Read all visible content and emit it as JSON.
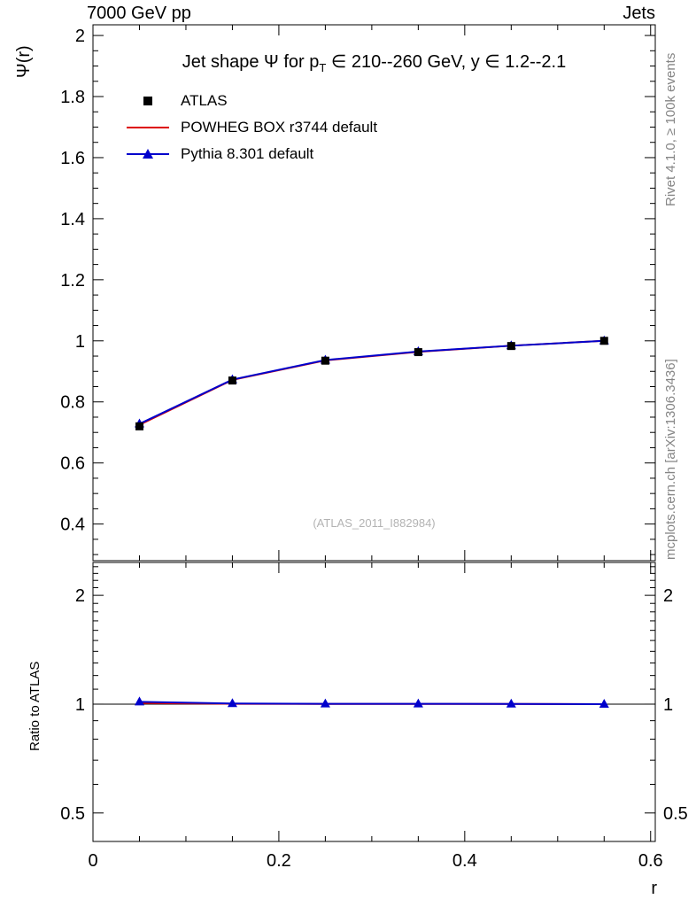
{
  "header": {
    "left": "7000 GeV pp",
    "right": "Jets"
  },
  "title": {
    "part1": "Jet shape Ψ for p",
    "sub": "T",
    "part2": " ∈ 210--260 GeV, y ∈ 1.2--2.1"
  },
  "legend": [
    {
      "label": "ATLAS",
      "marker": "filled-square",
      "color": "#000000"
    },
    {
      "label": "POWHEG BOX r3744 default",
      "marker": "line",
      "color": "#dd0000"
    },
    {
      "label": "Pythia 8.301 default",
      "marker": "filled-triangle-line",
      "color": "#0000cc"
    }
  ],
  "watermark": "(ATLAS_2011_I882984)",
  "side_notes": {
    "top": "Rivet 4.1.0, ≥ 100k events",
    "bottom": "mcplots.cern.ch [arXiv:1306.3436]"
  },
  "axis_labels": {
    "y_main": "Ψ(r)",
    "y_ratio": "Ratio to ATLAS",
    "x": "r"
  },
  "chart_data": {
    "type": "line",
    "title": "Jet shape Ψ for pT ∈ 210--260 GeV, y ∈ 1.2--2.1",
    "xlabel": "r",
    "ylabel_main": "Ψ(r)",
    "ylabel_ratio": "Ratio to ATLAS",
    "x": [
      0.05,
      0.15,
      0.25,
      0.35,
      0.45,
      0.55
    ],
    "series": [
      {
        "name": "ATLAS",
        "color": "#000000",
        "marker": "square",
        "values": [
          0.72,
          0.87,
          0.935,
          0.963,
          0.983,
          1.0
        ]
      },
      {
        "name": "POWHEG BOX r3744 default",
        "color": "#dd0000",
        "marker": "none",
        "values": [
          0.725,
          0.872,
          0.936,
          0.964,
          0.984,
          1.0
        ]
      },
      {
        "name": "Pythia 8.301 default",
        "color": "#0000cc",
        "marker": "triangle",
        "values": [
          0.728,
          0.873,
          0.937,
          0.965,
          0.984,
          1.0
        ]
      }
    ],
    "ratio_series": [
      {
        "name": "POWHEG BOX r3744 default",
        "color": "#dd0000",
        "marker": "none",
        "values": [
          1.007,
          1.002,
          1.001,
          1.001,
          1.001,
          1.0
        ]
      },
      {
        "name": "Pythia 8.301 default",
        "color": "#0000cc",
        "marker": "triangle",
        "values": [
          1.015,
          1.004,
          1.002,
          1.002,
          1.001,
          1.0
        ]
      }
    ],
    "reference_line": 1,
    "xlim": [
      0,
      0.605
    ],
    "ylim_main": [
      0.28,
      2.035
    ],
    "ylim_ratio": [
      0.417,
      2.466
    ],
    "ratio_log_scale": true,
    "grid": false,
    "legend_position": "top-left",
    "xticks": {
      "major": [
        0,
        0.2,
        0.4,
        0.6
      ],
      "labels": [
        "0",
        "0.2",
        "0.4",
        "0.6"
      ],
      "minor_step": 0.05
    },
    "yticks_main": {
      "major": [
        0.4,
        0.6,
        0.8,
        1,
        1.2,
        1.4,
        1.6,
        1.8,
        2
      ],
      "labels": [
        "0.4",
        "0.6",
        "0.8",
        "1",
        "1.2",
        "1.4",
        "1.6",
        "1.8",
        "2"
      ],
      "minor_step": 0.05
    },
    "yticks_ratio": {
      "major": [
        0.5,
        1,
        2
      ],
      "labels": [
        "0.5",
        "1",
        "2"
      ],
      "minor": [
        0.6,
        0.7,
        0.8,
        0.9,
        1.1,
        1.2,
        1.3,
        1.4,
        1.5,
        1.6,
        1.7,
        1.8,
        1.9,
        2.1,
        2.2,
        2.3,
        2.4
      ]
    }
  }
}
